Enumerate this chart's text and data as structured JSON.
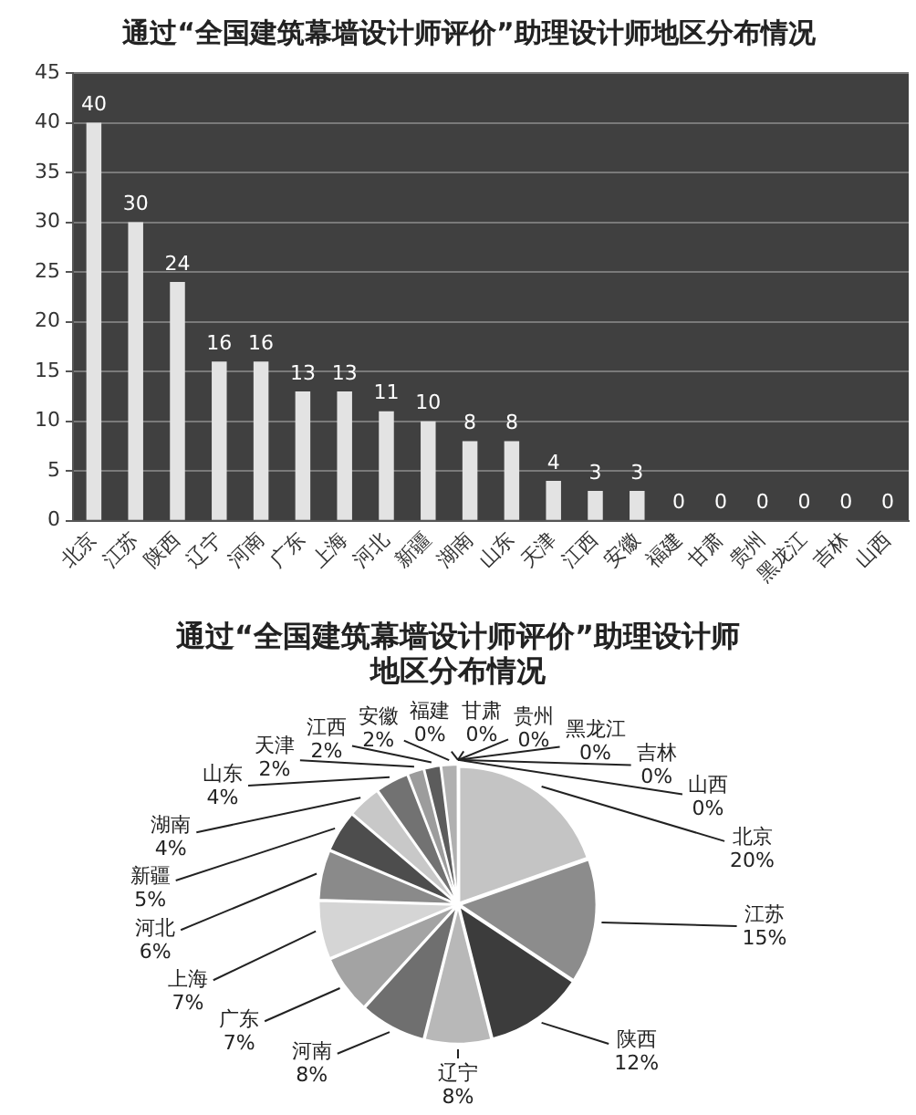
{
  "chart_data": [
    {
      "type": "bar",
      "title": "通过“全国建筑幕墙设计师评价”助理设计师地区分布情况",
      "categories": [
        "北京",
        "江苏",
        "陕西",
        "辽宁",
        "河南",
        "广东",
        "上海",
        "河北",
        "新疆",
        "湖南",
        "山东",
        "天津",
        "江西",
        "安徽",
        "福建",
        "甘肃",
        "贵州",
        "黑龙江",
        "吉林",
        "山西"
      ],
      "values": [
        40,
        30,
        24,
        16,
        16,
        13,
        13,
        11,
        10,
        8,
        8,
        4,
        3,
        3,
        0,
        0,
        0,
        0,
        0,
        0
      ],
      "color": "#e3e3e3",
      "ylim": [
        0,
        45
      ],
      "yticks": [
        0,
        5,
        10,
        15,
        20,
        25,
        30,
        35,
        40,
        45
      ],
      "grid": "y",
      "data_labels": true
    },
    {
      "type": "pie",
      "title": "通过“全国建筑幕墙设计师评价”助理设计师地区分布情况",
      "categories": [
        "北京",
        "江苏",
        "陕西",
        "辽宁",
        "河南",
        "广东",
        "上海",
        "河北",
        "新疆",
        "湖南",
        "山东",
        "天津",
        "江西",
        "安徽",
        "福建",
        "甘肃",
        "贵州",
        "黑龙江",
        "吉林",
        "山西"
      ],
      "values": [
        20,
        15,
        12,
        8,
        8,
        7,
        7,
        6,
        5,
        4,
        4,
        2,
        2,
        2,
        0,
        0,
        0,
        0,
        0,
        0
      ],
      "value_labels": [
        "20%",
        "15%",
        "12%",
        "8%",
        "8%",
        "7%",
        "7%",
        "6%",
        "5%",
        "4%",
        "4%",
        "2%",
        "2%",
        "2%",
        "0%",
        "0%",
        "0%",
        "0%",
        "0%",
        "0%"
      ],
      "colors": [
        "#c4c4c4",
        "#8c8c8c",
        "#3c3c3c",
        "#b8b8b8",
        "#6f6f6f",
        "#a3a3a3",
        "#d5d5d5",
        "#8a8a8a",
        "#4d4d4d",
        "#c8c8c8",
        "#727272",
        "#9c9c9c",
        "#5c5c5c",
        "#b0b0b0",
        "#808080",
        "#a0a0a0",
        "#606060",
        "#c0c0c0",
        "#909090",
        "#707070"
      ]
    }
  ]
}
